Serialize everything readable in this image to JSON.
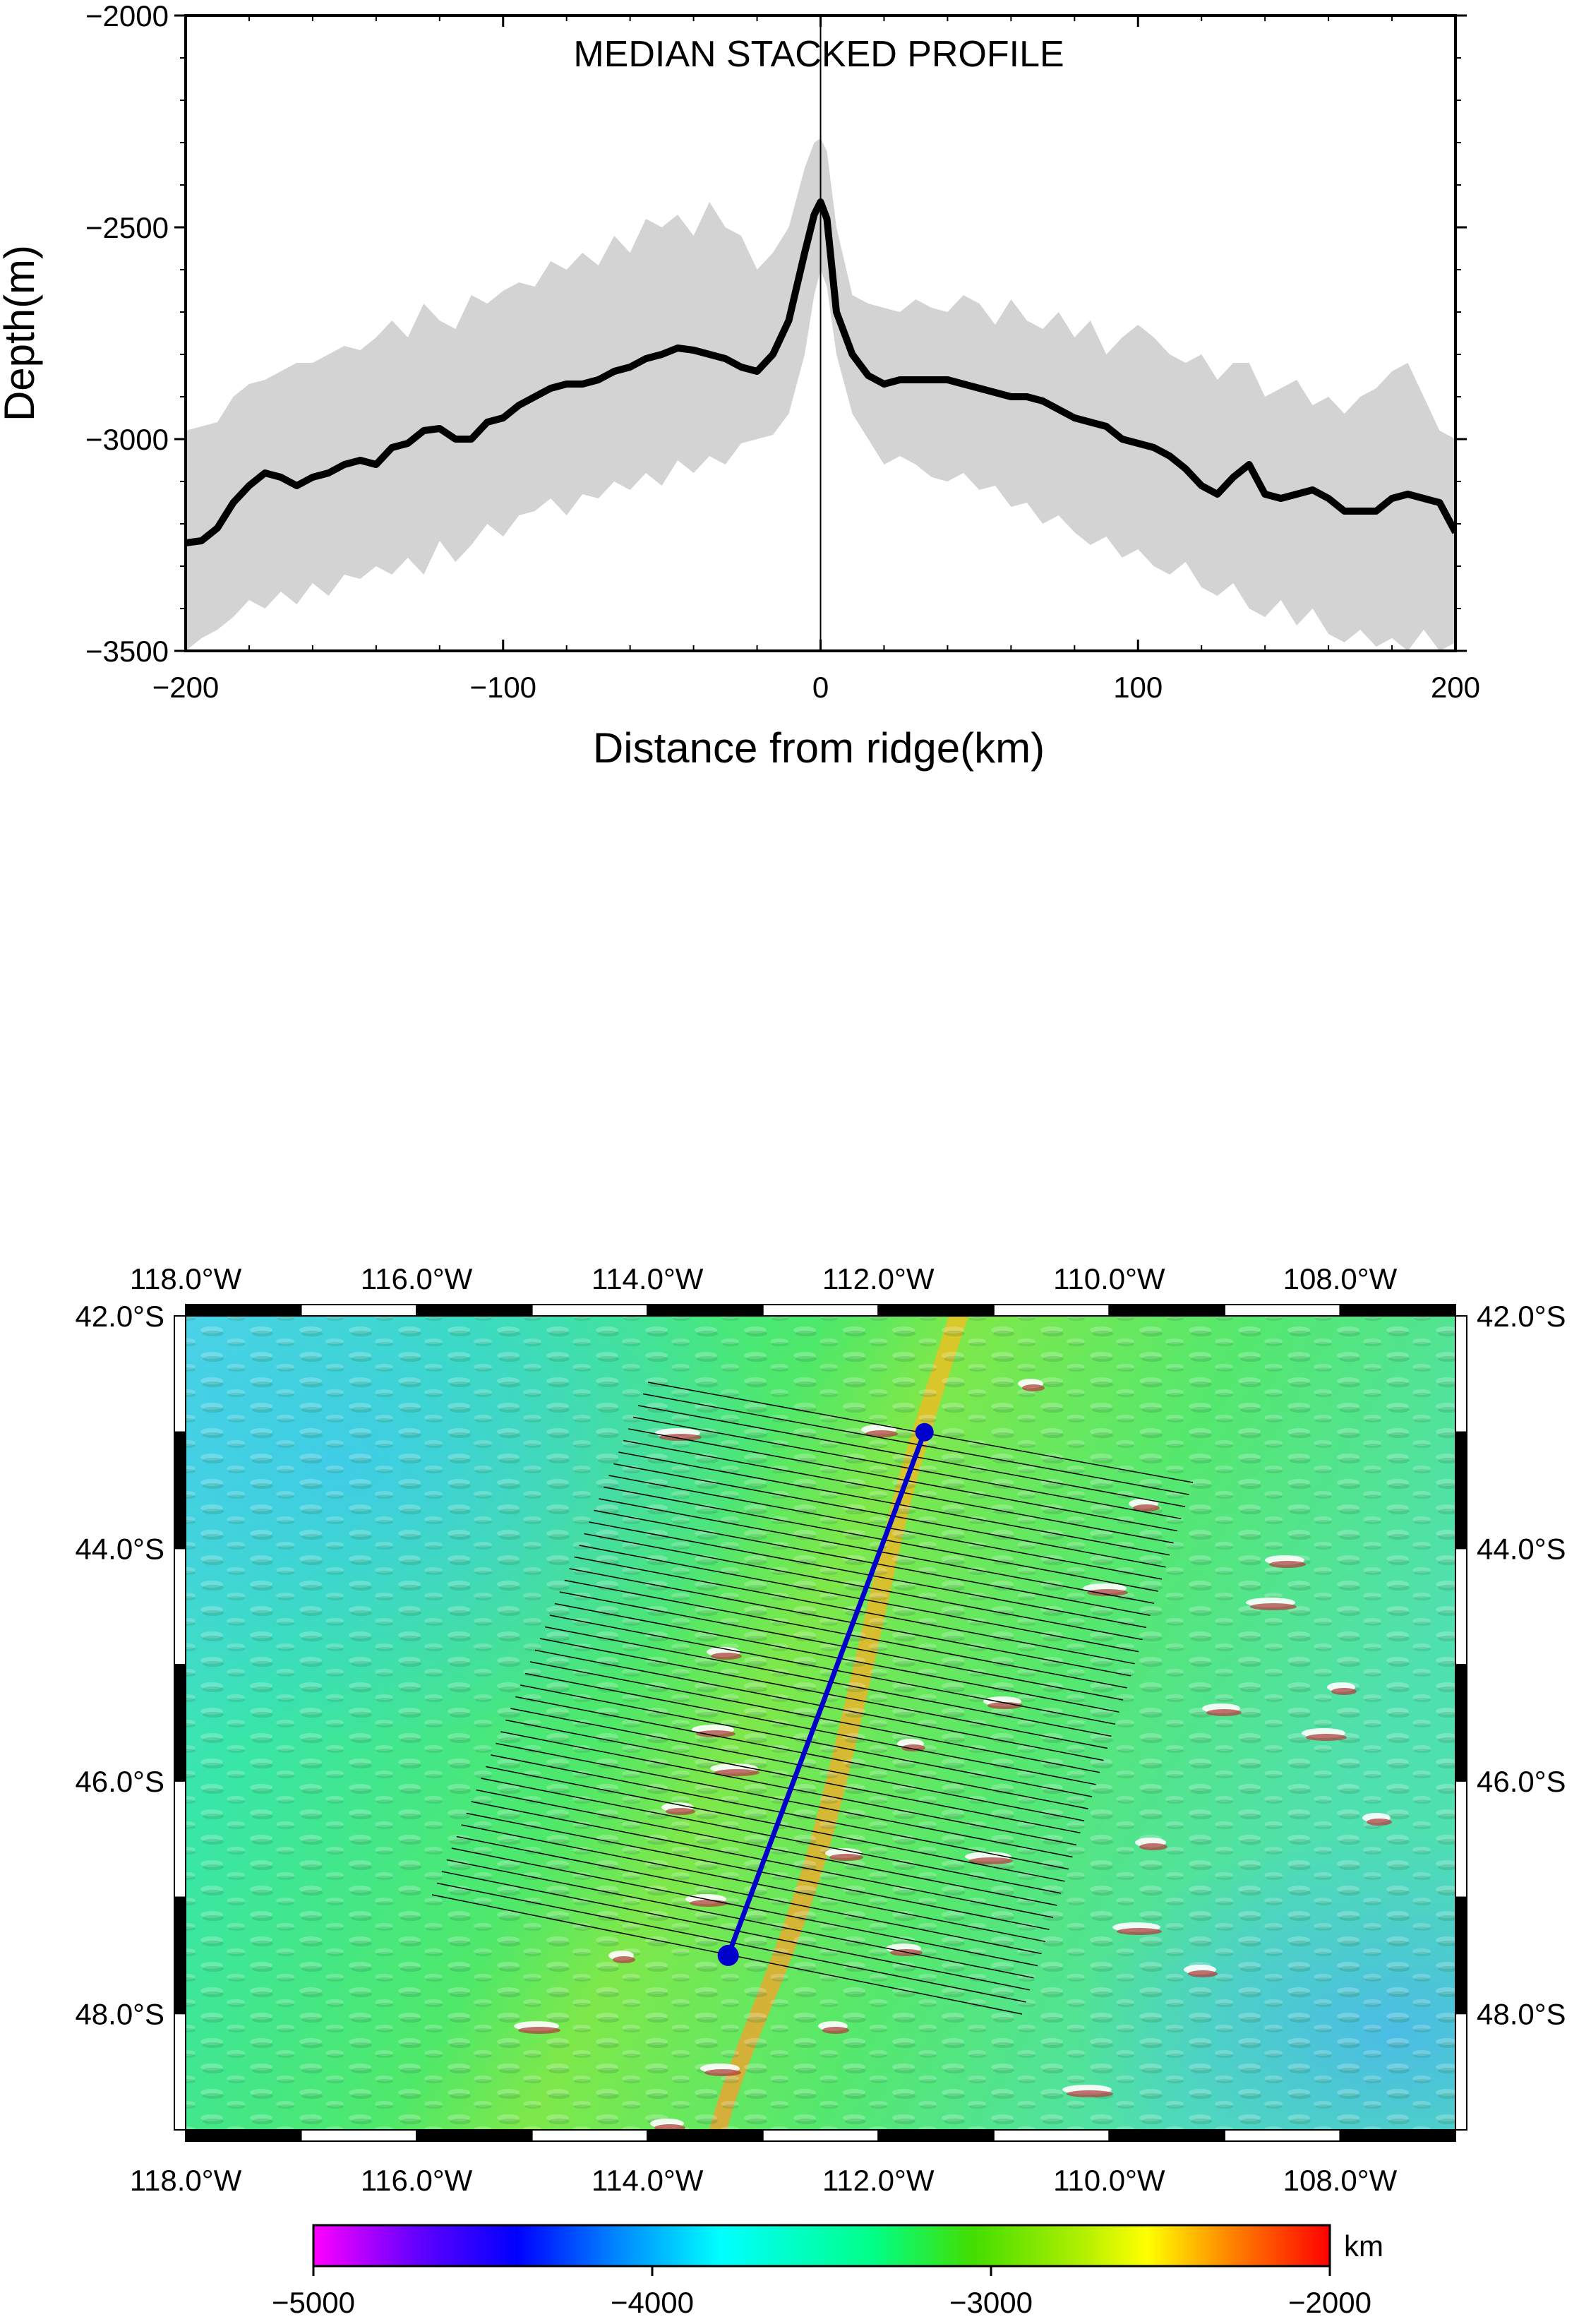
{
  "chart_data": [
    {
      "type": "line",
      "title": "MEDIAN STACKED PROFILE",
      "xlabel": "Distance from ridge(km)",
      "ylabel": "Depth(m)",
      "xlim": [
        -200,
        200
      ],
      "ylim": [
        -3500,
        -2000
      ],
      "xticks": [
        -200,
        -100,
        0,
        100,
        200
      ],
      "yticks": [
        -3500,
        -3000,
        -2500,
        -2000
      ],
      "x_tick_labels": [
        "−200",
        "−100",
        "0",
        "100",
        "200"
      ],
      "y_tick_labels": [
        "−3500",
        "−3000",
        "−2500",
        "−2000"
      ],
      "grid": false,
      "reference_line_x": 0,
      "series": [
        {
          "role": "median",
          "color": "#000000",
          "x": [
            -200,
            -195,
            -190,
            -185,
            -180,
            -175,
            -170,
            -165,
            -160,
            -155,
            -150,
            -145,
            -140,
            -135,
            -130,
            -125,
            -120,
            -115,
            -110,
            -105,
            -100,
            -95,
            -90,
            -85,
            -80,
            -75,
            -70,
            -65,
            -60,
            -55,
            -50,
            -45,
            -40,
            -35,
            -30,
            -25,
            -20,
            -15,
            -10,
            -5,
            -2,
            0,
            2,
            5,
            10,
            15,
            20,
            25,
            30,
            35,
            40,
            45,
            50,
            55,
            60,
            65,
            70,
            75,
            80,
            85,
            90,
            95,
            100,
            105,
            110,
            115,
            120,
            125,
            130,
            135,
            140,
            145,
            150,
            155,
            160,
            165,
            170,
            175,
            180,
            185,
            190,
            195,
            200
          ],
          "y": [
            -3245,
            -3240,
            -3210,
            -3150,
            -3110,
            -3080,
            -3090,
            -3110,
            -3090,
            -3080,
            -3060,
            -3050,
            -3060,
            -3020,
            -3010,
            -2980,
            -2975,
            -3000,
            -3000,
            -2960,
            -2950,
            -2920,
            -2900,
            -2880,
            -2870,
            -2870,
            -2860,
            -2840,
            -2830,
            -2810,
            -2800,
            -2785,
            -2790,
            -2800,
            -2810,
            -2830,
            -2840,
            -2800,
            -2720,
            -2560,
            -2470,
            -2440,
            -2480,
            -2700,
            -2800,
            -2850,
            -2870,
            -2860,
            -2860,
            -2860,
            -2860,
            -2870,
            -2880,
            -2890,
            -2900,
            -2900,
            -2910,
            -2930,
            -2950,
            -2960,
            -2970,
            -3000,
            -3010,
            -3020,
            -3040,
            -3070,
            -3110,
            -3130,
            -3090,
            -3060,
            -3130,
            -3140,
            -3130,
            -3120,
            -3140,
            -3170,
            -3170,
            -3170,
            -3140,
            -3130,
            -3140,
            -3150,
            -3220
          ]
        },
        {
          "role": "range-upper",
          "color": "#d3d3d3",
          "x": [
            -200,
            -195,
            -190,
            -185,
            -180,
            -175,
            -170,
            -165,
            -160,
            -155,
            -150,
            -145,
            -140,
            -135,
            -130,
            -125,
            -120,
            -115,
            -110,
            -105,
            -100,
            -95,
            -90,
            -85,
            -80,
            -75,
            -70,
            -65,
            -60,
            -55,
            -50,
            -45,
            -40,
            -35,
            -30,
            -25,
            -20,
            -15,
            -10,
            -5,
            -2,
            0,
            2,
            5,
            10,
            15,
            20,
            25,
            30,
            35,
            40,
            45,
            50,
            55,
            60,
            65,
            70,
            75,
            80,
            85,
            90,
            95,
            100,
            105,
            110,
            115,
            120,
            125,
            130,
            135,
            140,
            145,
            150,
            155,
            160,
            165,
            170,
            175,
            180,
            185,
            190,
            195,
            200
          ],
          "y": [
            -2980,
            -2970,
            -2960,
            -2900,
            -2870,
            -2860,
            -2840,
            -2820,
            -2820,
            -2800,
            -2780,
            -2790,
            -2760,
            -2720,
            -2760,
            -2680,
            -2720,
            -2740,
            -2660,
            -2680,
            -2650,
            -2630,
            -2640,
            -2580,
            -2600,
            -2560,
            -2590,
            -2520,
            -2560,
            -2480,
            -2500,
            -2470,
            -2520,
            -2440,
            -2500,
            -2520,
            -2600,
            -2560,
            -2500,
            -2360,
            -2300,
            -2290,
            -2320,
            -2500,
            -2660,
            -2680,
            -2690,
            -2700,
            -2670,
            -2690,
            -2700,
            -2660,
            -2680,
            -2730,
            -2670,
            -2720,
            -2740,
            -2700,
            -2760,
            -2720,
            -2800,
            -2760,
            -2730,
            -2760,
            -2800,
            -2820,
            -2800,
            -2860,
            -2820,
            -2820,
            -2900,
            -2880,
            -2860,
            -2920,
            -2900,
            -2940,
            -2900,
            -2880,
            -2840,
            -2820,
            -2900,
            -2980,
            -3000
          ]
        },
        {
          "role": "range-lower",
          "color": "#d3d3d3",
          "x": [
            -200,
            -195,
            -190,
            -185,
            -180,
            -175,
            -170,
            -165,
            -160,
            -155,
            -150,
            -145,
            -140,
            -135,
            -130,
            -125,
            -120,
            -115,
            -110,
            -105,
            -100,
            -95,
            -90,
            -85,
            -80,
            -75,
            -70,
            -65,
            -60,
            -55,
            -50,
            -45,
            -40,
            -35,
            -30,
            -25,
            -20,
            -15,
            -10,
            -5,
            -2,
            0,
            2,
            5,
            10,
            15,
            20,
            25,
            30,
            35,
            40,
            45,
            50,
            55,
            60,
            65,
            70,
            75,
            80,
            85,
            90,
            95,
            100,
            105,
            110,
            115,
            120,
            125,
            130,
            135,
            140,
            145,
            150,
            155,
            160,
            165,
            170,
            175,
            180,
            185,
            190,
            195,
            200
          ],
          "y": [
            -3500,
            -3470,
            -3450,
            -3420,
            -3380,
            -3400,
            -3360,
            -3390,
            -3340,
            -3370,
            -3320,
            -3330,
            -3300,
            -3320,
            -3280,
            -3320,
            -3240,
            -3290,
            -3250,
            -3200,
            -3230,
            -3180,
            -3170,
            -3140,
            -3180,
            -3130,
            -3140,
            -3100,
            -3120,
            -3080,
            -3110,
            -3050,
            -3080,
            -3040,
            -3060,
            -3010,
            -3000,
            -2990,
            -2940,
            -2800,
            -2660,
            -2600,
            -2640,
            -2800,
            -2940,
            -3000,
            -3060,
            -3040,
            -3060,
            -3090,
            -3100,
            -3080,
            -3120,
            -3110,
            -3160,
            -3150,
            -3200,
            -3180,
            -3220,
            -3250,
            -3230,
            -3280,
            -3260,
            -3300,
            -3320,
            -3290,
            -3350,
            -3370,
            -3340,
            -3400,
            -3420,
            -3380,
            -3440,
            -3400,
            -3460,
            -3480,
            -3450,
            -3490,
            -3470,
            -3500,
            -3450,
            -3500,
            -3480
          ]
        }
      ]
    },
    {
      "type": "heatmap",
      "map_kind": "shaded-relief bathymetry",
      "colormap": [
        "#ff00ff",
        "#6600ff",
        "#0000ff",
        "#0088ff",
        "#00ffff",
        "#00ff88",
        "#44dd00",
        "#aaee00",
        "#ffff00",
        "#ff8800",
        "#ff0000"
      ],
      "colorbar": {
        "min": -5000,
        "max": -2000,
        "ticks": [
          -5000,
          -4000,
          -3000,
          -2000
        ],
        "tick_labels": [
          "−5000",
          "−4000",
          "−3000",
          "−2000"
        ],
        "unit": "km"
      },
      "lon_range": [
        -118.0,
        -107.0
      ],
      "lat_range": [
        -49.0,
        -42.0
      ],
      "lon_tick_labels": [
        "118.0°W",
        "116.0°W",
        "114.0°W",
        "112.0°W",
        "110.0°W",
        "108.0°W"
      ],
      "lat_tick_labels": [
        "42.0°S",
        "44.0°S",
        "46.0°S",
        "48.0°S"
      ],
      "ridge_profile": {
        "color": "#0000cc",
        "start": {
          "lon": -111.6,
          "lat": -43.0
        },
        "end": {
          "lon": -113.3,
          "lat": -47.5
        }
      },
      "cross_profile_count": 45
    }
  ]
}
